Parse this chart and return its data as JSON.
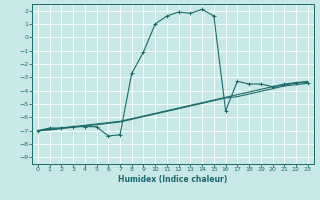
{
  "title": "",
  "xlabel": "Humidex (Indice chaleur)",
  "bg_color": "#c8e8e8",
  "grid_color": "#ffffff",
  "line_color": "#1a6b6b",
  "xlim": [
    -0.5,
    23.5
  ],
  "ylim": [
    -9.5,
    2.5
  ],
  "xticks": [
    0,
    1,
    2,
    3,
    4,
    5,
    6,
    7,
    8,
    9,
    10,
    11,
    12,
    13,
    14,
    15,
    16,
    17,
    18,
    19,
    20,
    21,
    22,
    23
  ],
  "yticks": [
    2,
    1,
    0,
    -1,
    -2,
    -3,
    -4,
    -5,
    -6,
    -7,
    -8,
    -9
  ],
  "series1_x": [
    0,
    1,
    2,
    3,
    4,
    5,
    6,
    7,
    8,
    9,
    10,
    11,
    12,
    13,
    14,
    15,
    16,
    17,
    18,
    19,
    20,
    21,
    22,
    23
  ],
  "series1_y": [
    -7.0,
    -6.8,
    -6.8,
    -6.7,
    -6.7,
    -6.7,
    -7.4,
    -7.3,
    -2.7,
    -1.1,
    1.0,
    1.6,
    1.9,
    1.8,
    2.1,
    1.6,
    -5.5,
    -3.3,
    -3.5,
    -3.5,
    -3.7,
    -3.5,
    -3.4,
    -3.4
  ],
  "series2_x": [
    0,
    1,
    2,
    3,
    4,
    5,
    6,
    7,
    8,
    9,
    10,
    11,
    12,
    13,
    14,
    15,
    16,
    17,
    18,
    19,
    20,
    21,
    22,
    23
  ],
  "series2_y": [
    -7.0,
    -6.9,
    -6.8,
    -6.7,
    -6.6,
    -6.5,
    -6.4,
    -6.3,
    -6.1,
    -5.9,
    -5.7,
    -5.5,
    -5.3,
    -5.1,
    -4.9,
    -4.7,
    -4.5,
    -4.3,
    -4.1,
    -3.9,
    -3.7,
    -3.6,
    -3.4,
    -3.3
  ],
  "series3_x": [
    0,
    1,
    2,
    3,
    4,
    5,
    6,
    7,
    8,
    9,
    10,
    11,
    12,
    13,
    14,
    15,
    16,
    17,
    18,
    19,
    20,
    21,
    22,
    23
  ],
  "series3_y": [
    -7.0,
    -6.95,
    -6.85,
    -6.75,
    -6.65,
    -6.55,
    -6.45,
    -6.35,
    -6.15,
    -5.95,
    -5.75,
    -5.55,
    -5.35,
    -5.15,
    -4.95,
    -4.75,
    -4.55,
    -4.45,
    -4.25,
    -4.05,
    -3.85,
    -3.65,
    -3.55,
    -3.45
  ]
}
